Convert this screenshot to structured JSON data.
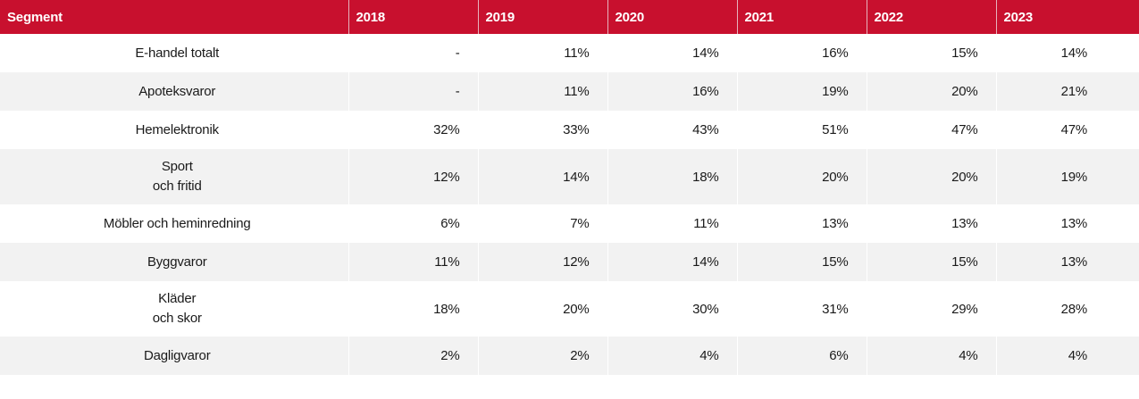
{
  "chart_data": {
    "type": "table",
    "columns": [
      "Segment",
      "2018",
      "2019",
      "2020",
      "2021",
      "2022",
      "2023"
    ],
    "rows": [
      {
        "segment": [
          "E-handel totalt"
        ],
        "values": [
          "-",
          "11%",
          "14%",
          "16%",
          "15%",
          "14%"
        ]
      },
      {
        "segment": [
          "Apoteksvaror"
        ],
        "values": [
          "-",
          "11%",
          "16%",
          "19%",
          "20%",
          "21%"
        ]
      },
      {
        "segment": [
          "Hemelektronik"
        ],
        "values": [
          "32%",
          "33%",
          "43%",
          "51%",
          "47%",
          "47%"
        ]
      },
      {
        "segment": [
          "Sport",
          "och fritid"
        ],
        "values": [
          "12%",
          "14%",
          "18%",
          "20%",
          "20%",
          "19%"
        ]
      },
      {
        "segment": [
          "Möbler och heminredning"
        ],
        "values": [
          "6%",
          "7%",
          "11%",
          "13%",
          "13%",
          "13%"
        ]
      },
      {
        "segment": [
          "Byggvaror"
        ],
        "values": [
          "11%",
          "12%",
          "14%",
          "15%",
          "15%",
          "13%"
        ]
      },
      {
        "segment": [
          "Kläder",
          "och skor"
        ],
        "values": [
          "18%",
          "20%",
          "30%",
          "31%",
          "29%",
          "28%"
        ]
      },
      {
        "segment": [
          "Dagligvaror"
        ],
        "values": [
          "2%",
          "2%",
          "4%",
          "6%",
          "4%",
          "4%"
        ]
      }
    ]
  },
  "colors": {
    "header_bg": "#c8102e",
    "header_text": "#ffffff",
    "row_alt_bg": "#f2f2f2"
  }
}
